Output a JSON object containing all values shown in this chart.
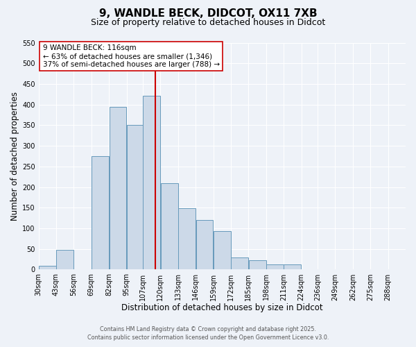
{
  "title": "9, WANDLE BECK, DIDCOT, OX11 7XB",
  "subtitle": "Size of property relative to detached houses in Didcot",
  "xlabel": "Distribution of detached houses by size in Didcot",
  "ylabel": "Number of detached properties",
  "bin_labels": [
    "30sqm",
    "43sqm",
    "56sqm",
    "69sqm",
    "82sqm",
    "95sqm",
    "107sqm",
    "120sqm",
    "133sqm",
    "146sqm",
    "159sqm",
    "172sqm",
    "185sqm",
    "198sqm",
    "211sqm",
    "224sqm",
    "236sqm",
    "249sqm",
    "262sqm",
    "275sqm",
    "288sqm"
  ],
  "bar_values": [
    10,
    48,
    0,
    275,
    395,
    350,
    422,
    210,
    148,
    120,
    93,
    30,
    22,
    12,
    12,
    0,
    0,
    0,
    0,
    0,
    0
  ],
  "bar_left_edges": [
    30,
    43,
    56,
    69,
    82,
    95,
    107,
    120,
    133,
    146,
    159,
    172,
    185,
    198,
    211,
    224,
    236,
    249,
    262,
    275,
    288
  ],
  "bin_width": 13,
  "bar_color": "#ccd9e8",
  "bar_edge_color": "#6699bb",
  "vline_x": 116,
  "vline_color": "#cc0000",
  "annotation_text_line1": "9 WANDLE BECK: 116sqm",
  "annotation_text_line2": "← 63% of detached houses are smaller (1,346)",
  "annotation_text_line3": "37% of semi-detached houses are larger (788) →",
  "annotation_box_facecolor": "#ffffff",
  "annotation_box_edgecolor": "#cc0000",
  "ylim": [
    0,
    550
  ],
  "yticks": [
    0,
    50,
    100,
    150,
    200,
    250,
    300,
    350,
    400,
    450,
    500,
    550
  ],
  "background_color": "#eef2f8",
  "grid_color": "#ffffff",
  "footer_line1": "Contains HM Land Registry data © Crown copyright and database right 2025.",
  "footer_line2": "Contains public sector information licensed under the Open Government Licence v3.0.",
  "title_fontsize": 11,
  "subtitle_fontsize": 9,
  "axis_label_fontsize": 8.5,
  "tick_fontsize": 7,
  "annotation_fontsize": 7.5,
  "footer_fontsize": 5.8
}
